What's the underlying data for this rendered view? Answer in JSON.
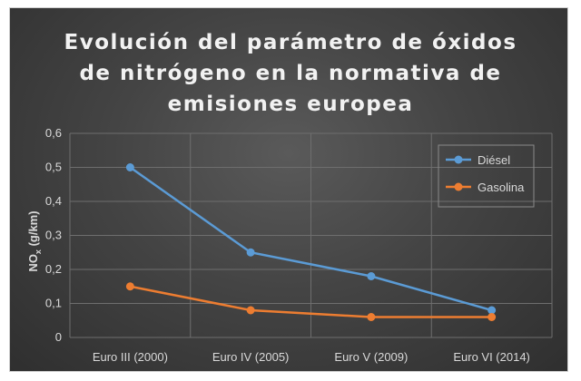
{
  "chart_data": {
    "type": "line",
    "title_lines": [
      "Evolución del parámetro de óxidos",
      "de nitrógeno en la normativa de",
      "emisiones europea"
    ],
    "ylabel_main": "NO",
    "ylabel_sub": "x",
    "ylabel_unit": " (g/km)",
    "xlabel": "",
    "categories": [
      "Euro III (2000)",
      "Euro IV (2005)",
      "Euro V (2009)",
      "Euro VI (2014)"
    ],
    "ylim": [
      0,
      0.6
    ],
    "yticks": [
      0,
      0.1,
      0.2,
      0.3,
      0.4,
      0.5,
      0.6
    ],
    "ytick_labels": [
      "0",
      "0,1",
      "0,2",
      "0,3",
      "0,4",
      "0,5",
      "0,6"
    ],
    "grid": true,
    "legend_position": "top-right",
    "series": [
      {
        "name": "Diésel",
        "color": "#5b9bd5",
        "values": [
          0.5,
          0.25,
          0.18,
          0.08
        ]
      },
      {
        "name": "Gasolina",
        "color": "#ed7d31",
        "values": [
          0.15,
          0.08,
          0.06,
          0.06
        ]
      }
    ]
  }
}
